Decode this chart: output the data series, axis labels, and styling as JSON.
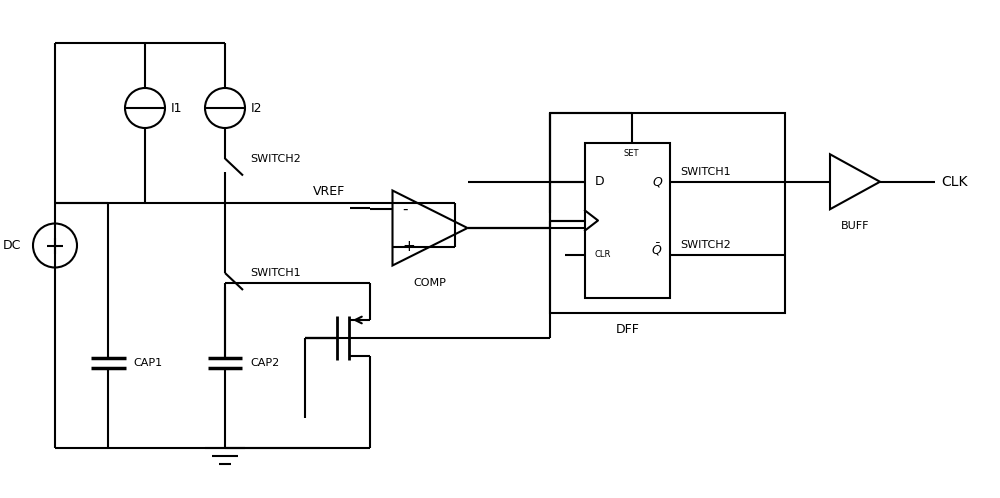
{
  "bg_color": "#ffffff",
  "line_color": "#000000",
  "lw": 1.5,
  "fig_width": 10.0,
  "fig_height": 4.98,
  "dpi": 100,
  "xlim": [
    0,
    10
  ],
  "ylim": [
    0,
    4.98
  ]
}
